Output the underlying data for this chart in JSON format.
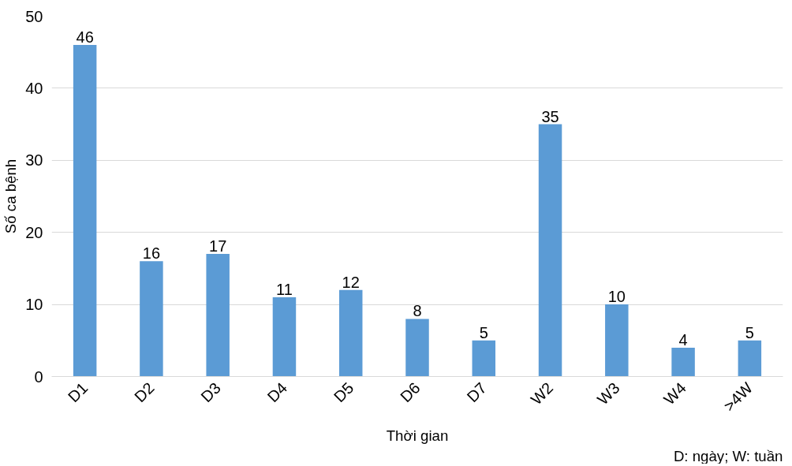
{
  "chart_data": {
    "type": "bar",
    "ylabel": "Số ca bệnh",
    "xlabel": "Thời gian",
    "categories": [
      "D1",
      "D2",
      "D3",
      "D4",
      "D5",
      "D6",
      "D7",
      "W2",
      "W3",
      "W4",
      ">4W"
    ],
    "values": [
      46,
      16,
      17,
      11,
      12,
      8,
      5,
      35,
      10,
      4,
      5
    ],
    "color": "#5b9bd5",
    "ylim": [
      0,
      50
    ],
    "yticks": [
      0,
      10,
      20,
      30,
      40,
      50
    ],
    "grid": "y",
    "data_labels": true,
    "annotations": [
      "D: ngày; W: tuần"
    ]
  }
}
